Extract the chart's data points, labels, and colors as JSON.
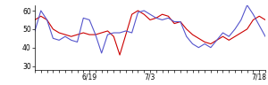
{
  "red_line": [
    55,
    57,
    55,
    50,
    48,
    47,
    46,
    47,
    48,
    47,
    47,
    48,
    49,
    46,
    36,
    47,
    58,
    60,
    58,
    55,
    56,
    58,
    57,
    53,
    54,
    50,
    47,
    45,
    43,
    42,
    44,
    46,
    44,
    46,
    48,
    50,
    55,
    57,
    55
  ],
  "blue_line": [
    49,
    60,
    55,
    45,
    44,
    46,
    44,
    43,
    56,
    55,
    47,
    37,
    47,
    48,
    48,
    49,
    48,
    59,
    60,
    58,
    56,
    55,
    56,
    54,
    54,
    46,
    42,
    40,
    42,
    40,
    44,
    48,
    46,
    50,
    55,
    63,
    58,
    52,
    46
  ],
  "xlim": [
    0,
    38
  ],
  "ylim": [
    28,
    63
  ],
  "yticks": [
    30,
    40,
    50,
    60
  ],
  "xtick_positions": [
    9,
    19,
    27,
    37
  ],
  "xtick_labels": [
    "6/19",
    "7/3",
    "",
    "7/18"
  ],
  "red_color": "#cc0000",
  "blue_color": "#5555cc",
  "bg_color": "#ffffff",
  "linewidth": 0.8
}
